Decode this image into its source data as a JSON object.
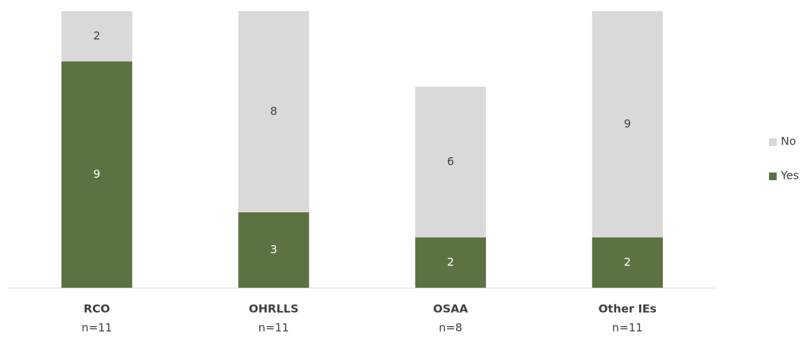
{
  "chart_data": {
    "type": "stacked_bar",
    "categories": [
      "RCO",
      "OHRLLS",
      "OSAA",
      "Other IEs"
    ],
    "sublabels": [
      "n=11",
      "n=11",
      "n=8",
      "n=11"
    ],
    "series": [
      {
        "name": "Yes",
        "color": "#5b7342",
        "label_color": "#ffffff",
        "values": [
          9,
          3,
          2,
          2
        ]
      },
      {
        "name": "No",
        "color": "#d9d9d9",
        "label_color": "#404040",
        "values": [
          2,
          8,
          6,
          9
        ]
      }
    ],
    "ylim": [
      0,
      11
    ],
    "legend": "right"
  }
}
